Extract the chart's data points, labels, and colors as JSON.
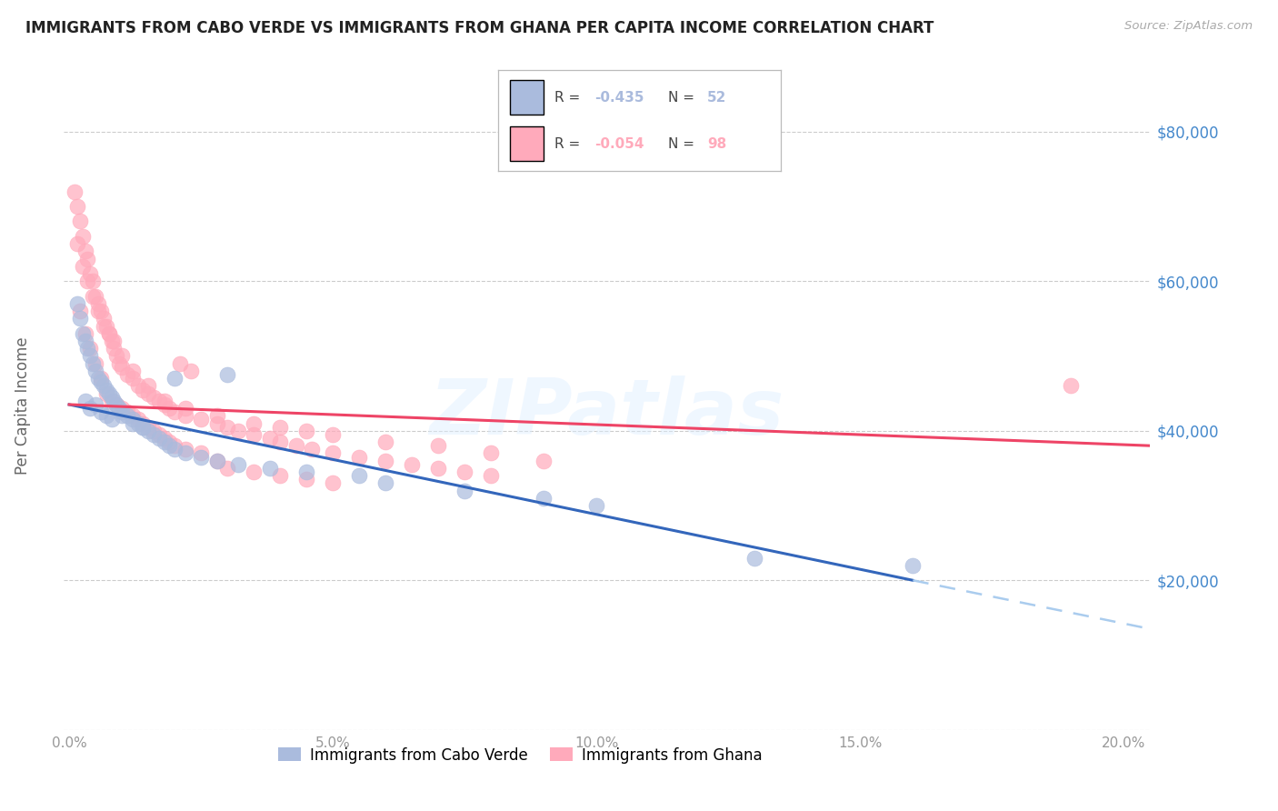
{
  "title": "IMMIGRANTS FROM CABO VERDE VS IMMIGRANTS FROM GHANA PER CAPITA INCOME CORRELATION CHART",
  "source": "Source: ZipAtlas.com",
  "ylabel": "Per Capita Income",
  "xlim": [
    -0.1,
    20.5
  ],
  "ylim": [
    0,
    90000
  ],
  "ytick_vals": [
    0,
    20000,
    40000,
    60000,
    80000
  ],
  "ytick_labels": [
    "",
    "$20,000",
    "$40,000",
    "$60,000",
    "$80,000"
  ],
  "xtick_vals": [
    0,
    5,
    10,
    15,
    20
  ],
  "xtick_labels": [
    "0.0%",
    "5.0%",
    "10.0%",
    "15.0%",
    "20.0%"
  ],
  "watermark": "ZIPatlas",
  "cabo_color": "#aabbdd",
  "ghana_color": "#ffaabb",
  "cabo_R": -0.435,
  "cabo_N": 52,
  "ghana_R": -0.054,
  "ghana_N": 98,
  "trend_cabo_solid_color": "#3366bb",
  "trend_cabo_dash_color": "#aaccee",
  "trend_ghana_color": "#ee4466",
  "cabo_verde_x": [
    0.15,
    0.2,
    0.25,
    0.3,
    0.35,
    0.4,
    0.45,
    0.5,
    0.55,
    0.6,
    0.65,
    0.7,
    0.75,
    0.8,
    0.85,
    0.9,
    0.95,
    1.0,
    1.1,
    1.2,
    1.3,
    1.4,
    1.5,
    1.6,
    1.7,
    1.8,
    1.9,
    2.0,
    2.2,
    2.5,
    2.8,
    3.2,
    3.8,
    4.5,
    5.5,
    6.0,
    7.5,
    9.0,
    10.0,
    13.0,
    16.0,
    0.3,
    0.4,
    0.5,
    0.6,
    0.7,
    0.8,
    1.0,
    1.2,
    1.4,
    2.0,
    3.0
  ],
  "cabo_verde_y": [
    57000,
    55000,
    53000,
    52000,
    51000,
    50000,
    49000,
    48000,
    47000,
    46500,
    46000,
    45500,
    45000,
    44500,
    44000,
    43500,
    43000,
    42500,
    42000,
    41500,
    41000,
    40500,
    40000,
    39500,
    39000,
    38500,
    38000,
    37500,
    37000,
    36500,
    36000,
    35500,
    35000,
    34500,
    34000,
    33000,
    32000,
    31000,
    30000,
    23000,
    22000,
    44000,
    43000,
    43500,
    42500,
    42000,
    41500,
    42000,
    41000,
    40500,
    47000,
    47500
  ],
  "ghana_x": [
    0.1,
    0.15,
    0.2,
    0.25,
    0.3,
    0.35,
    0.4,
    0.45,
    0.5,
    0.55,
    0.6,
    0.65,
    0.7,
    0.75,
    0.8,
    0.85,
    0.9,
    0.95,
    1.0,
    1.1,
    1.2,
    1.3,
    1.4,
    1.5,
    1.6,
    1.7,
    1.8,
    1.9,
    2.0,
    2.2,
    2.5,
    2.8,
    3.0,
    3.2,
    3.5,
    3.8,
    4.0,
    4.3,
    4.6,
    5.0,
    5.5,
    6.0,
    6.5,
    7.0,
    7.5,
    8.0,
    0.2,
    0.3,
    0.4,
    0.5,
    0.6,
    0.7,
    0.8,
    0.9,
    1.0,
    1.1,
    1.2,
    1.3,
    1.4,
    1.5,
    1.6,
    1.7,
    1.8,
    1.9,
    2.0,
    2.2,
    2.5,
    2.8,
    3.0,
    3.5,
    4.0,
    4.5,
    5.0,
    0.15,
    0.25,
    0.35,
    0.45,
    0.55,
    0.65,
    0.75,
    0.85,
    1.0,
    1.2,
    1.5,
    1.8,
    2.2,
    2.8,
    3.5,
    4.0,
    4.5,
    5.0,
    6.0,
    7.0,
    8.0,
    9.0,
    19.0,
    2.1,
    2.3
  ],
  "ghana_y": [
    72000,
    70000,
    68000,
    66000,
    64000,
    63000,
    61000,
    60000,
    58000,
    57000,
    56000,
    55000,
    54000,
    53000,
    52000,
    51000,
    50000,
    49000,
    48500,
    47500,
    47000,
    46000,
    45500,
    45000,
    44500,
    44000,
    43500,
    43000,
    42500,
    42000,
    41500,
    41000,
    40500,
    40000,
    39500,
    39000,
    38500,
    38000,
    37500,
    37000,
    36500,
    36000,
    35500,
    35000,
    34500,
    34000,
    56000,
    53000,
    51000,
    49000,
    47000,
    45000,
    44000,
    43500,
    43000,
    42500,
    42000,
    41500,
    41000,
    40500,
    40000,
    39500,
    39000,
    38500,
    38000,
    37500,
    37000,
    36000,
    35000,
    34500,
    34000,
    33500,
    33000,
    65000,
    62000,
    60000,
    58000,
    56000,
    54000,
    53000,
    52000,
    50000,
    48000,
    46000,
    44000,
    43000,
    42000,
    41000,
    40500,
    40000,
    39500,
    38500,
    38000,
    37000,
    36000,
    46000,
    49000,
    48000
  ]
}
